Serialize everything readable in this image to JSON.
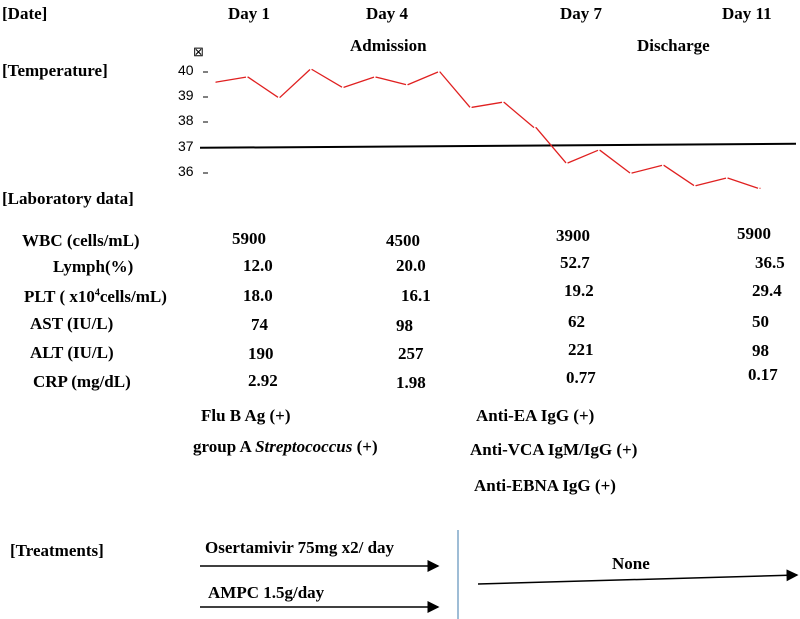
{
  "header": {
    "date_label": "[Date]",
    "days": [
      "Day 1",
      "Day 4",
      "Day 7",
      "Day 11"
    ],
    "admission": "Admission",
    "discharge": "Discharge",
    "unit_glyph": "⊠"
  },
  "temperature": {
    "label": "[Temperature]",
    "ticks": [
      "40",
      "39",
      "38",
      "37",
      "36"
    ],
    "line_color": "#e02020",
    "reference_value": 37
  },
  "chart_data": {
    "type": "line",
    "series": [
      {
        "values": [
          39.6,
          39.8,
          39.0,
          40.1,
          39.4,
          39.8,
          39.5,
          40.0,
          38.6,
          38.8,
          37.8,
          36.4,
          36.9,
          36.0,
          36.3,
          35.5,
          35.8,
          35.4
        ]
      }
    ],
    "ylim": [
      35.5,
      40.2
    ],
    "reference_line": 37
  },
  "lab": {
    "label": "[Laboratory data]",
    "rows": [
      {
        "name": "WBC (cells/mL)",
        "values": [
          "5900",
          "4500",
          "3900",
          "5900"
        ]
      },
      {
        "name": "Lymph(%)",
        "values": [
          "12.0",
          "20.0",
          "52.7",
          "36.5"
        ]
      },
      {
        "name_pre": "PLT ( x10",
        "name_sup": "4",
        "name_post": "cells/mL)",
        "values": [
          "18.0",
          "16.1",
          "19.2",
          "29.4"
        ]
      },
      {
        "name": "AST (IU/L)",
        "values": [
          "74",
          "98",
          "62",
          "50"
        ]
      },
      {
        "name": "ALT (IU/L)",
        "values": [
          "190",
          "257",
          "221",
          "98"
        ]
      },
      {
        "name": "CRP (mg/dL)",
        "values": [
          "2.92",
          "1.98",
          "0.77",
          "0.17"
        ]
      }
    ],
    "flu": "Flu B Ag (+)",
    "strep_pre": "group  A ",
    "strep_italic": "Streptococcus",
    "strep_post": " (+)",
    "anti_ea": "Anti-EA IgG (+)",
    "anti_vca": "Anti-VCA IgM/IgG (+)",
    "anti_ebna": "Anti-EBNA IgG (+)"
  },
  "treatments": {
    "label": "[Treatments]",
    "osel": "Osertamivir 75mg x2/ day",
    "ampc": "AMPC 1.5g/day",
    "none": "None",
    "divider_color": "#7fa7c9"
  }
}
